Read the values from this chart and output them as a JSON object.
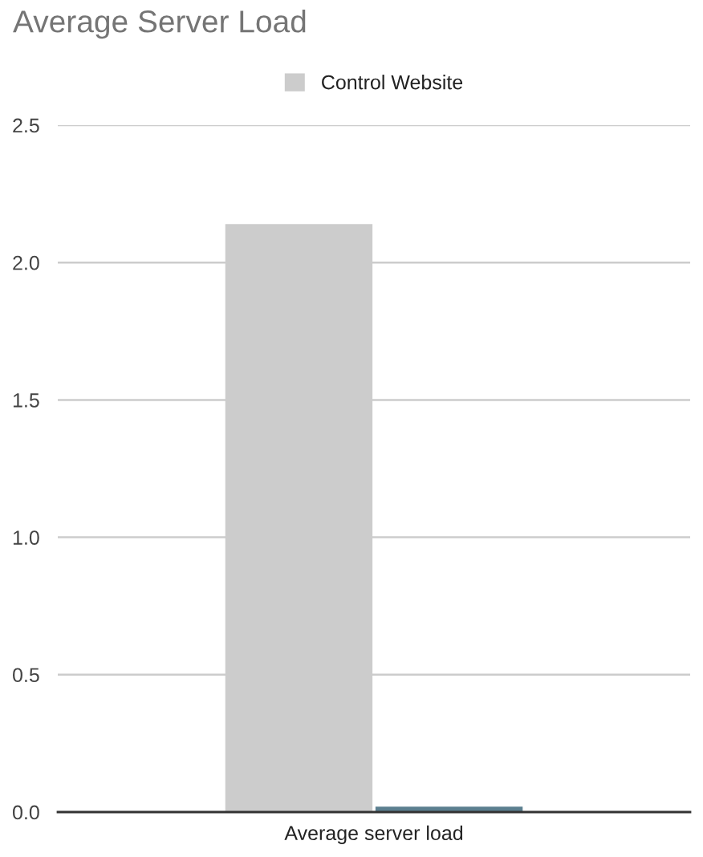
{
  "chart_data": {
    "type": "bar",
    "title": "Average Server Load",
    "categories": [
      "Average server load"
    ],
    "series": [
      {
        "name": "Control Website",
        "color": "#cccccc",
        "values": [
          2.14
        ]
      },
      {
        "color": "#5b7f8f",
        "values": [
          0.02
        ]
      }
    ],
    "ylim": [
      0,
      2.5
    ],
    "yticks": [
      {
        "value": 0,
        "label": "0.0"
      },
      {
        "value": 0.5,
        "label": "0.5"
      },
      {
        "value": 1,
        "label": "1.0"
      },
      {
        "value": 1.5,
        "label": "1.5"
      },
      {
        "value": 2,
        "label": "2.0"
      },
      {
        "value": 2.5,
        "label": "2.5"
      }
    ],
    "grid": "y",
    "legend": "top"
  }
}
